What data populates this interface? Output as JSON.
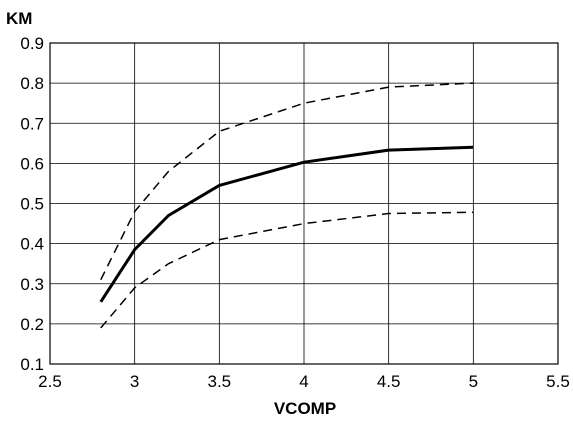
{
  "chart_data": {
    "type": "line",
    "title": "",
    "xlabel": "VCOMP",
    "ylabel": "KM",
    "xlim": [
      2.5,
      5.5
    ],
    "ylim": [
      0.1,
      0.9
    ],
    "x_ticks": [
      2.5,
      3,
      3.5,
      4,
      4.5,
      5,
      5.5
    ],
    "y_ticks": [
      0.1,
      0.2,
      0.3,
      0.4,
      0.5,
      0.6,
      0.7,
      0.8,
      0.9
    ],
    "x_tick_labels": [
      "2.5",
      "3",
      "3.5",
      "4",
      "4.5",
      "5",
      "5.5"
    ],
    "y_tick_labels": [
      "0.1",
      "0.2",
      "0.3",
      "0.4",
      "0.5",
      "0.6",
      "0.7",
      "0.8",
      "0.9"
    ],
    "grid": true,
    "legend": "none",
    "series": [
      {
        "style": "solid",
        "color": "#000000",
        "x": [
          2.8,
          3.0,
          3.2,
          3.5,
          4.0,
          4.5,
          5.0
        ],
        "y": [
          0.255,
          0.385,
          0.47,
          0.545,
          0.603,
          0.633,
          0.64
        ]
      },
      {
        "style": "dashed",
        "color": "#000000",
        "x": [
          2.8,
          3.0,
          3.2,
          3.5,
          4.0,
          4.5,
          5.0
        ],
        "y": [
          0.31,
          0.48,
          0.58,
          0.68,
          0.75,
          0.79,
          0.8
        ]
      },
      {
        "style": "dashed",
        "color": "#000000",
        "x": [
          2.8,
          3.0,
          3.2,
          3.5,
          4.0,
          4.5,
          5.0
        ],
        "y": [
          0.19,
          0.29,
          0.35,
          0.41,
          0.45,
          0.475,
          0.478
        ]
      }
    ]
  }
}
